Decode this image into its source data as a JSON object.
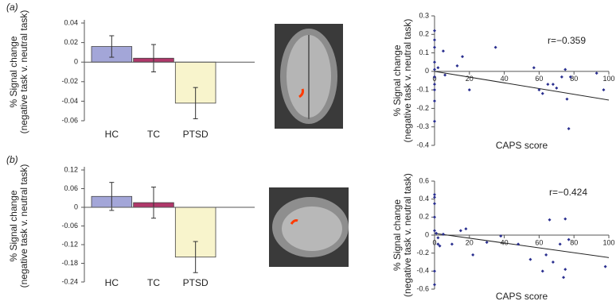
{
  "panel_labels": [
    "(a)",
    "(b)"
  ],
  "chart_data": [
    {
      "type": "bar",
      "categories": [
        "HC",
        "TC",
        "PTSD"
      ],
      "values": [
        0.016,
        0.004,
        -0.042
      ],
      "errors": [
        0.011,
        0.014,
        0.016
      ],
      "colors": [
        "#a3a6d8",
        "#b0376a",
        "#f8f4cc"
      ],
      "ylim": [
        -0.06,
        0.04
      ],
      "yticks": [
        0.04,
        0.02,
        0,
        -0.02,
        -0.04,
        -0.06
      ],
      "ylabel": [
        "% Signal change",
        "(negative task v. neutral task)"
      ]
    },
    {
      "type": "scatter",
      "xlabel": "CAPS score",
      "ylabel": [
        "% Signal change",
        "(negative task v. neutral task)"
      ],
      "annotation": "r=−0.359",
      "color": "#2a2f8f",
      "x": [
        0,
        0,
        0,
        0,
        0,
        0,
        0,
        0,
        0,
        0,
        2,
        5,
        6,
        13,
        16,
        20,
        35,
        57,
        60,
        62,
        65,
        68,
        70,
        73,
        75,
        76,
        77,
        78,
        93,
        97
      ],
      "y": [
        0.22,
        0.17,
        0.13,
        0.05,
        0.01,
        -0.03,
        -0.07,
        -0.1,
        -0.16,
        -0.27,
        0.02,
        0.11,
        -0.02,
        0.03,
        0.08,
        -0.1,
        0.13,
        0.02,
        -0.1,
        -0.12,
        -0.07,
        -0.07,
        -0.09,
        -0.03,
        0.01,
        -0.15,
        -0.31,
        -0.03,
        -0.01,
        -0.1
      ],
      "fit": {
        "x": [
          0,
          100
        ],
        "y": [
          0.0,
          -0.155
        ]
      },
      "xlim": [
        0,
        100
      ],
      "xticks": [
        0,
        20,
        40,
        60,
        80,
        100
      ],
      "ylim": [
        -0.4,
        0.3
      ],
      "yticks": [
        0.3,
        0.2,
        0.1,
        0,
        -0.1,
        -0.2,
        -0.3,
        -0.4
      ]
    },
    {
      "type": "bar",
      "categories": [
        "HC",
        "TC",
        "PTSD"
      ],
      "values": [
        0.035,
        0.015,
        -0.16
      ],
      "errors": [
        0.045,
        0.05,
        0.05
      ],
      "colors": [
        "#a3a6d8",
        "#b0376a",
        "#f8f4cc"
      ],
      "ylim": [
        -0.24,
        0.12
      ],
      "yticks": [
        0.12,
        0.06,
        0,
        -0.06,
        -0.12,
        -0.18,
        -0.24
      ],
      "ylabel": [
        "% Signal change",
        "(negative task v. neutral task)"
      ]
    },
    {
      "type": "scatter",
      "xlabel": "CAPS score",
      "ylabel": [
        "% Signal change",
        "(negative task v. neutral task)"
      ],
      "annotation": "r=−0.424",
      "color": "#2a2f8f",
      "x": [
        0,
        0,
        0,
        0,
        0,
        1,
        2,
        2,
        3,
        0,
        0,
        5,
        10,
        15,
        18,
        22,
        30,
        38,
        48,
        55,
        62,
        64,
        66,
        68,
        72,
        74,
        75,
        75,
        77,
        98
      ],
      "y": [
        0.45,
        0.42,
        0.35,
        0.2,
        0.05,
        0.02,
        -0.03,
        -0.1,
        -0.12,
        -0.4,
        -0.55,
        0.01,
        -0.1,
        0.05,
        0.07,
        -0.22,
        -0.08,
        -0.01,
        -0.1,
        -0.27,
        -0.4,
        -0.22,
        0.17,
        -0.3,
        -0.1,
        -0.47,
        -0.38,
        0.18,
        -0.05,
        -0.35
      ],
      "fit": {
        "x": [
          0,
          100
        ],
        "y": [
          0.02,
          -0.25
        ]
      },
      "xlim": [
        0,
        100
      ],
      "xticks": [
        0,
        20,
        40,
        60,
        80,
        100
      ],
      "ylim": [
        -0.6,
        0.6
      ],
      "yticks": [
        0.6,
        0.4,
        0.2,
        0,
        -0.2,
        -0.4,
        -0.6
      ]
    }
  ]
}
